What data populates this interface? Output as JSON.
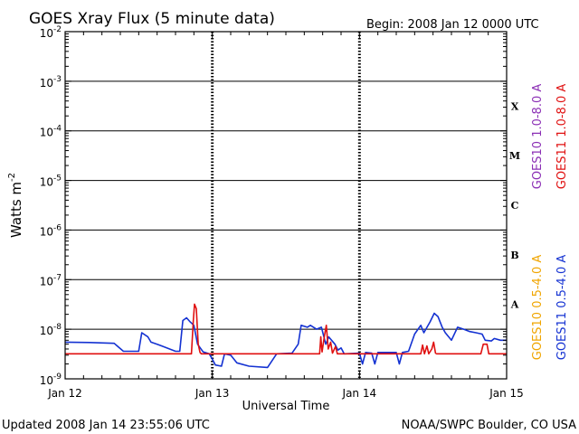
{
  "title": "GOES Xray Flux (5 minute data)",
  "begin_label": "Begin:  2008 Jan 12 0000 UTC",
  "updated_label": "Updated 2008 Jan 14 23:55:06 UTC",
  "source_label": "NOAA/SWPC Boulder, CO USA",
  "chart_data": {
    "type": "line",
    "title": "GOES Xray Flux (5 minute data)",
    "xlabel": "Universal Time",
    "ylabel_base": "Watts m",
    "ylabel_exp": "-2",
    "yscale": "log",
    "ylim": [
      1e-09,
      0.01
    ],
    "xlim": [
      0,
      72
    ],
    "x_units": "hours since 2008 Jan 12 0000 UTC",
    "x_ticks": [
      {
        "x": 0,
        "label": "Jan 12"
      },
      {
        "x": 24,
        "label": "Jan 13"
      },
      {
        "x": 48,
        "label": "Jan 14"
      },
      {
        "x": 72,
        "label": "Jan 15"
      }
    ],
    "y_ticks": [
      {
        "exp": -2,
        "base": "10",
        "sup": "-2"
      },
      {
        "exp": -3,
        "base": "10",
        "sup": "-3"
      },
      {
        "exp": -4,
        "base": "10",
        "sup": "-4"
      },
      {
        "exp": -5,
        "base": "10",
        "sup": "-5"
      },
      {
        "exp": -6,
        "base": "10",
        "sup": "-6"
      },
      {
        "exp": -7,
        "base": "10",
        "sup": "-7"
      },
      {
        "exp": -8,
        "base": "10",
        "sup": "-8"
      },
      {
        "exp": -9,
        "base": "10",
        "sup": "-9"
      }
    ],
    "flare_classes": [
      {
        "label": "X",
        "exp": -3.5
      },
      {
        "label": "M",
        "exp": -4.5
      },
      {
        "label": "C",
        "exp": -5.5
      },
      {
        "label": "B",
        "exp": -6.5
      },
      {
        "label": "A",
        "exp": -7.5
      }
    ],
    "legend": {
      "placement": "right",
      "entries": [
        {
          "name": "GOES10 1.0-8.0 A",
          "color": "#8b2fb5"
        },
        {
          "name": "GOES11 1.0-8.0 A",
          "color": "#e01010"
        },
        {
          "name": "GOES10 0.5-4.0 A",
          "color": "#f0a500"
        },
        {
          "name": "GOES11 0.5-4.0 A",
          "color": "#1432d2"
        }
      ]
    },
    "series": [
      {
        "name": "GOES11 0.5-4.0 A",
        "color": "#1432d2",
        "points": [
          [
            0,
            5.5e-09
          ],
          [
            4,
            5.4e-09
          ],
          [
            8,
            5.2e-09
          ],
          [
            9.5,
            3.6e-09
          ],
          [
            12,
            3.6e-09
          ],
          [
            12.5,
            8.5e-09
          ],
          [
            13.5,
            7e-09
          ],
          [
            14,
            5.5e-09
          ],
          [
            15,
            5e-09
          ],
          [
            16,
            4.5e-09
          ],
          [
            18,
            3.6e-09
          ],
          [
            18.7,
            3.6e-09
          ],
          [
            19.2,
            1.5e-08
          ],
          [
            19.8,
            1.7e-08
          ],
          [
            20.4,
            1.4e-08
          ],
          [
            21,
            1.2e-08
          ],
          [
            21.6,
            5e-09
          ],
          [
            22.5,
            3.5e-09
          ],
          [
            23.5,
            3.2e-09
          ],
          [
            24,
            2.5e-09
          ],
          [
            24.5,
            1.9e-09
          ],
          [
            25.5,
            1.8e-09
          ],
          [
            26,
            3.2e-09
          ],
          [
            27,
            3e-09
          ],
          [
            28,
            2.1e-09
          ],
          [
            30,
            1.8e-09
          ],
          [
            33,
            1.7e-09
          ],
          [
            34.5,
            3.2e-09
          ],
          [
            37,
            3.3e-09
          ],
          [
            38,
            5e-09
          ],
          [
            38.5,
            1.2e-08
          ],
          [
            39.5,
            1.1e-08
          ],
          [
            40,
            1.2e-08
          ],
          [
            41,
            1e-08
          ],
          [
            41.8,
            1.1e-08
          ],
          [
            42.5,
            5e-09
          ],
          [
            43,
            7e-09
          ],
          [
            44,
            5e-09
          ],
          [
            44.5,
            3.8e-09
          ],
          [
            45,
            4.2e-09
          ],
          [
            45.5,
            3.2e-09
          ],
          [
            48,
            3.3e-09
          ],
          [
            48.5,
            2e-09
          ],
          [
            49,
            3.4e-09
          ],
          [
            50,
            3.3e-09
          ],
          [
            50.5,
            2e-09
          ],
          [
            51,
            3.4e-09
          ],
          [
            54,
            3.4e-09
          ],
          [
            54.5,
            2e-09
          ],
          [
            55,
            3.4e-09
          ],
          [
            56,
            3.6e-09
          ],
          [
            57,
            8e-09
          ],
          [
            58,
            1.2e-08
          ],
          [
            58.5,
            8.5e-09
          ],
          [
            59.5,
            1.4e-08
          ],
          [
            60.2,
            2.1e-08
          ],
          [
            60.8,
            1.8e-08
          ],
          [
            61.5,
            1.1e-08
          ],
          [
            62,
            8.5e-09
          ],
          [
            63,
            6e-09
          ],
          [
            64,
            1.1e-08
          ],
          [
            65,
            1e-08
          ],
          [
            66,
            9e-09
          ],
          [
            67,
            8.5e-09
          ],
          [
            68,
            8e-09
          ],
          [
            68.5,
            6e-09
          ],
          [
            69.5,
            5.8e-09
          ],
          [
            70,
            6.5e-09
          ],
          [
            71,
            6e-09
          ],
          [
            72,
            6e-09
          ]
        ]
      },
      {
        "name": "GOES11 1.0-8.0 A",
        "color": "#e01010",
        "points": [
          [
            0,
            3.2e-09
          ],
          [
            20.6,
            3.2e-09
          ],
          [
            20.9,
            1.5e-08
          ],
          [
            21.1,
            3.2e-08
          ],
          [
            21.4,
            2.6e-08
          ],
          [
            21.7,
            5e-09
          ],
          [
            22,
            3.4e-09
          ],
          [
            22.2,
            3.2e-09
          ],
          [
            41.5,
            3.2e-09
          ],
          [
            41.7,
            7e-09
          ],
          [
            41.9,
            3.5e-09
          ],
          [
            42.3,
            7.5e-09
          ],
          [
            42.6,
            1.2e-08
          ],
          [
            42.9,
            4e-09
          ],
          [
            43.3,
            5.5e-09
          ],
          [
            43.6,
            3.3e-09
          ],
          [
            44.1,
            4.5e-09
          ],
          [
            44.4,
            3.2e-09
          ],
          [
            58,
            3.2e-09
          ],
          [
            58.3,
            4.8e-09
          ],
          [
            58.6,
            3.2e-09
          ],
          [
            59,
            4.6e-09
          ],
          [
            59.3,
            3.2e-09
          ],
          [
            59.8,
            4e-09
          ],
          [
            60.1,
            5.5e-09
          ],
          [
            60.4,
            3.3e-09
          ],
          [
            60.6,
            3.2e-09
          ],
          [
            67.8,
            3.2e-09
          ],
          [
            68.2,
            5e-09
          ],
          [
            68.8,
            5e-09
          ],
          [
            69.1,
            3.2e-09
          ],
          [
            72,
            3.2e-09
          ]
        ]
      }
    ]
  }
}
